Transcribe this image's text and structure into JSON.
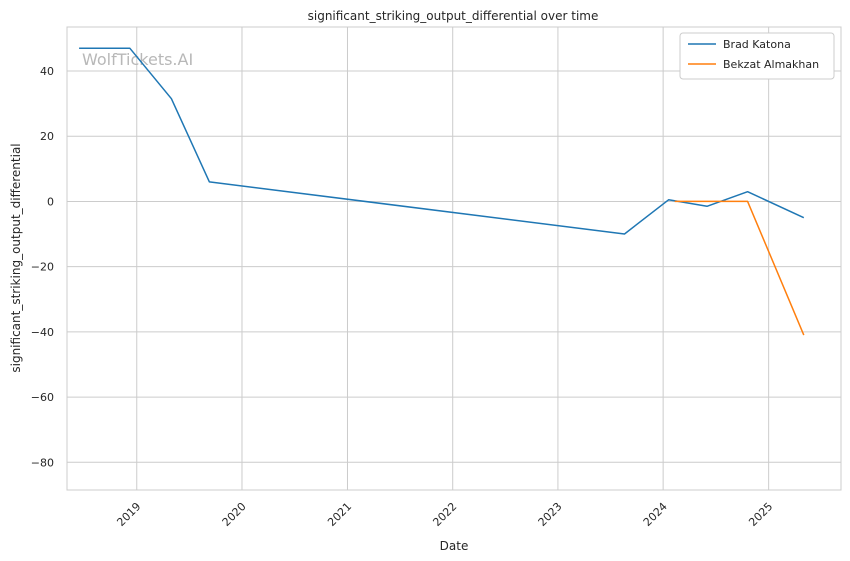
{
  "watermark": "WolfTickets.AI",
  "chart_data": {
    "type": "line",
    "title": "significant_striking_output_differential over time",
    "xlabel": "Date",
    "ylabel": "significant_striking_output_differential",
    "x_ticks": [
      "2019",
      "2020",
      "2021",
      "2022",
      "2023",
      "2024",
      "2025"
    ],
    "y_ticks": [
      40,
      20,
      0,
      -20,
      -40,
      -60,
      -80
    ],
    "xlim": [
      "2018-05-04",
      "2025-09-09"
    ],
    "ylim": [
      -88.5,
      53.5
    ],
    "grid": true,
    "legend_position": "top-right",
    "series": [
      {
        "name": "Brad Katona",
        "color": "#1f77b4",
        "points": [
          {
            "x": "2018-06-15",
            "y": 47
          },
          {
            "x": "2018-12-08",
            "y": 47
          },
          {
            "x": "2019-05-01",
            "y": 31.5
          },
          {
            "x": "2019-09-10",
            "y": 6
          },
          {
            "x": "2023-08-20",
            "y": -10
          },
          {
            "x": "2024-01-20",
            "y": 0.5
          },
          {
            "x": "2024-06-01",
            "y": -1.5
          },
          {
            "x": "2024-10-20",
            "y": 3
          },
          {
            "x": "2025-05-03",
            "y": -5
          }
        ]
      },
      {
        "name": "Bekzat Almakhan",
        "color": "#ff7f0e",
        "points": [
          {
            "x": "2024-02-10",
            "y": 0
          },
          {
            "x": "2024-10-20",
            "y": 0
          },
          {
            "x": "2025-05-03",
            "y": -41
          }
        ]
      }
    ]
  }
}
